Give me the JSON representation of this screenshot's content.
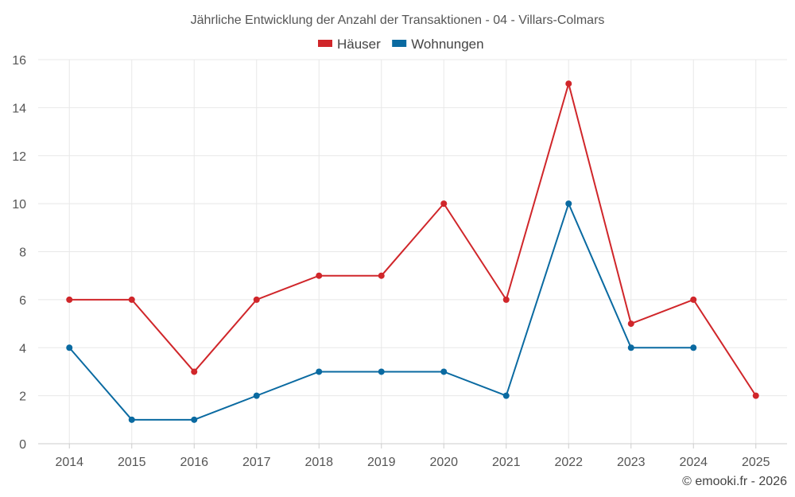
{
  "chart_data": {
    "type": "line",
    "title": "Jährliche Entwicklung der Anzahl der Transaktionen - 04 - Villars-Colmars",
    "categories": [
      "2014",
      "2015",
      "2016",
      "2017",
      "2018",
      "2019",
      "2020",
      "2021",
      "2022",
      "2023",
      "2024",
      "2025"
    ],
    "series": [
      {
        "name": "Häuser",
        "color": "#d0262a",
        "values": [
          6,
          6,
          3,
          6,
          7,
          7,
          10,
          6,
          15,
          5,
          6,
          2
        ]
      },
      {
        "name": "Wohnungen",
        "color": "#0a6aa1",
        "values": [
          4,
          1,
          1,
          2,
          3,
          3,
          3,
          2,
          10,
          4,
          4,
          null
        ]
      }
    ],
    "ylim": [
      0,
      16
    ],
    "yticks": [
      0,
      2,
      4,
      6,
      8,
      10,
      12,
      14,
      16
    ],
    "grid": true,
    "legend": "top-center",
    "xlabel": "",
    "ylabel": ""
  },
  "credit": "© emooki.fr - 2026"
}
